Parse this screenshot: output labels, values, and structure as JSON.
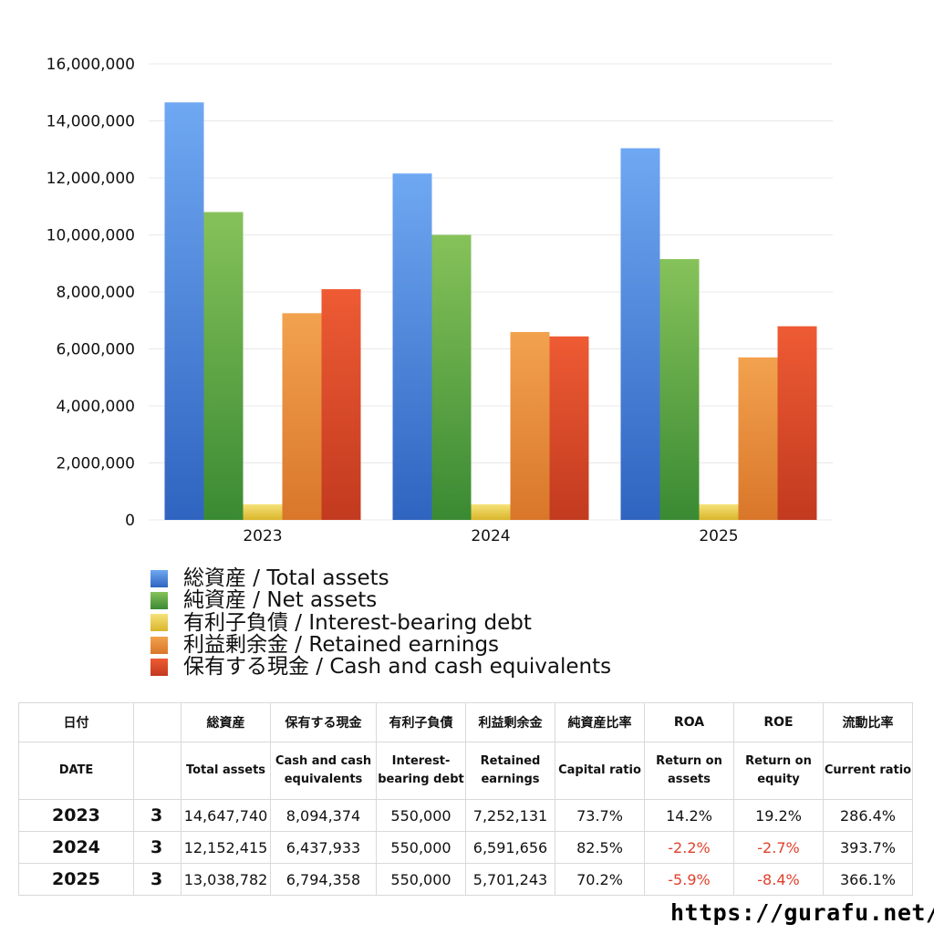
{
  "chart_data": {
    "type": "bar",
    "categories": [
      "2023",
      "2024",
      "2025"
    ],
    "ylim": [
      0,
      16000000
    ],
    "yticks": [
      "0",
      "2,000,000",
      "4,000,000",
      "6,000,000",
      "8,000,000",
      "10,000,000",
      "12,000,000",
      "14,000,000",
      "16,000,000"
    ],
    "grid": true,
    "legend_position": "bottom",
    "series": [
      {
        "name": "総資産 / Total assets",
        "color_top": "#6fa8f2",
        "color_bottom": "#2f64c0",
        "values": [
          14647740,
          12152415,
          13038782
        ]
      },
      {
        "name": "純資産 / Net assets",
        "color_top": "#86c25a",
        "color_bottom": "#3a8a33",
        "values": [
          10800000,
          10000000,
          9150000
        ]
      },
      {
        "name": "有利子負債 / Interest-bearing debt",
        "color_top": "#f6e27a",
        "color_bottom": "#d9b52a",
        "values": [
          550000,
          550000,
          550000
        ]
      },
      {
        "name": "利益剰余金 / Retained earnings",
        "color_top": "#f2a24e",
        "color_bottom": "#d9762a",
        "values": [
          7252131,
          6591656,
          5701243
        ]
      },
      {
        "name": "保有する現金 /  Cash and cash equivalents",
        "color_top": "#ee5b34",
        "color_bottom": "#c23a1f",
        "values": [
          8094374,
          6437933,
          6794358
        ]
      }
    ]
  },
  "table": {
    "headers_jp": [
      "日付",
      "",
      "総資産",
      "保有する現金",
      "有利子負債",
      "利益剰余金",
      "純資産比率",
      "ROA",
      "ROE",
      "流動比率"
    ],
    "headers_en": [
      "DATE",
      "",
      "Total assets",
      "Cash and cash equivalents",
      "Interest-bearing debt",
      "Retained earnings",
      "Capital ratio",
      "Return on assets",
      "Return on equity",
      "Current ratio"
    ],
    "rows": [
      {
        "date": "2023",
        "month": "3",
        "total_assets": "14,647,740",
        "cash": "8,094,374",
        "debt": "550,000",
        "retained": "7,252,131",
        "capital_ratio": "73.7%",
        "roa": "14.2%",
        "roe": "19.2%",
        "current_ratio": "286.4%"
      },
      {
        "date": "2024",
        "month": "3",
        "total_assets": "12,152,415",
        "cash": "6,437,933",
        "debt": "550,000",
        "retained": "6,591,656",
        "capital_ratio": "82.5%",
        "roa": "-2.2%",
        "roe": "-2.7%",
        "current_ratio": "393.7%"
      },
      {
        "date": "2025",
        "month": "3",
        "total_assets": "13,038,782",
        "cash": "6,794,358",
        "debt": "550,000",
        "retained": "5,701,243",
        "capital_ratio": "70.2%",
        "roa": "-5.9%",
        "roe": "-8.4%",
        "current_ratio": "366.1%"
      }
    ]
  },
  "footer": {
    "site": "https://gurafu.net/"
  }
}
